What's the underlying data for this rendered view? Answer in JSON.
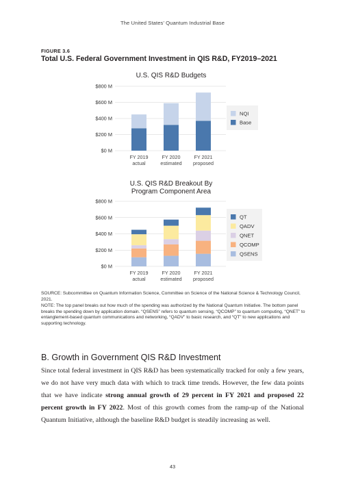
{
  "page": {
    "running_header": "The United States’ Quantum Industrial Base",
    "figure_label": "FIGURE 3.6",
    "figure_title": "Total U.S. Federal Government Investment in QIS R&D, FY2019–2021",
    "source": "SOURCE: Subcommittee on Quantum Information Science, Committee on Science of the National Science & Technology Council, 2021.",
    "note": "NOTE: The top panel breaks out how much of the spending was authorized by the National Quantum Initiative. The bottom panel breaks the spending down by application domain. “QSENS” refers to quantum sensing, “QCOMP” to quantum computing, “QNET” to entanglement-based quantum communications and networking, “QADV” to basic research, and “QT” to new applications and supporting technology.",
    "section_heading": "B. Growth in Government QIS R&D Investment",
    "body_pre": "Since total federal investment in QIS R&D has been systematically tracked for only a few years, we do not have very much data with which to track time trends. However, the few data points that we have indicate ",
    "body_bold": "strong annual growth of 29 percent in FY 2021 and proposed 22 percent growth in FY 2022",
    "body_post": ". Most of this growth comes from the ramp-up of the National Quantum Initiative, although the baseline R&D budget is steadily increasing as well.",
    "page_number": "43"
  },
  "chart_data": [
    {
      "type": "bar",
      "stacked": true,
      "title": "U.S. QIS R&D Budgets",
      "categories": [
        [
          "FY 2019",
          "actual"
        ],
        [
          "FY 2020",
          "estimated"
        ],
        [
          "FY 2021",
          "proposed"
        ]
      ],
      "series": [
        {
          "name": "Base",
          "values": [
            278,
            320,
            370
          ],
          "color": "#4a78ad"
        },
        {
          "name": "NQI",
          "values": [
            172,
            270,
            352
          ],
          "color": "#c6d4ea"
        }
      ],
      "legend_order": [
        "NQI",
        "Base"
      ],
      "ylim": [
        0,
        800
      ],
      "yticks": [
        0,
        200,
        400,
        600,
        800
      ],
      "ytick_labels": [
        "$0 M",
        "$200 M",
        "$400 M",
        "$600 M",
        "$800 M"
      ],
      "grid": true,
      "legend": "right"
    },
    {
      "type": "bar",
      "stacked": true,
      "title": [
        "U.S. QIS R&D Breakout By",
        "Program Component Area"
      ],
      "categories": [
        [
          "FY 2019",
          "actual"
        ],
        [
          "FY 2020",
          "estimated"
        ],
        [
          "FY 2021",
          "proposed"
        ]
      ],
      "series": [
        {
          "name": "QSENS",
          "values": [
            112,
            130,
            155
          ],
          "color": "#a8bde0"
        },
        {
          "name": "QCOMP",
          "values": [
            108,
            140,
            160
          ],
          "color": "#f8b280"
        },
        {
          "name": "QNET",
          "values": [
            40,
            65,
            125
          ],
          "color": "#dbd0e5"
        },
        {
          "name": "QADV",
          "values": [
            135,
            165,
            190
          ],
          "color": "#fcea9f"
        },
        {
          "name": "QT",
          "values": [
            55,
            75,
            92
          ],
          "color": "#4a78ad"
        }
      ],
      "legend_order": [
        "QT",
        "QADV",
        "QNET",
        "QCOMP",
        "QSENS"
      ],
      "ylim": [
        0,
        800
      ],
      "yticks": [
        0,
        200,
        400,
        600,
        800
      ],
      "ytick_labels": [
        "$0 M",
        "$200 M",
        "$400 M",
        "$600 M",
        "$800 M"
      ],
      "grid": true,
      "legend": "right"
    }
  ]
}
